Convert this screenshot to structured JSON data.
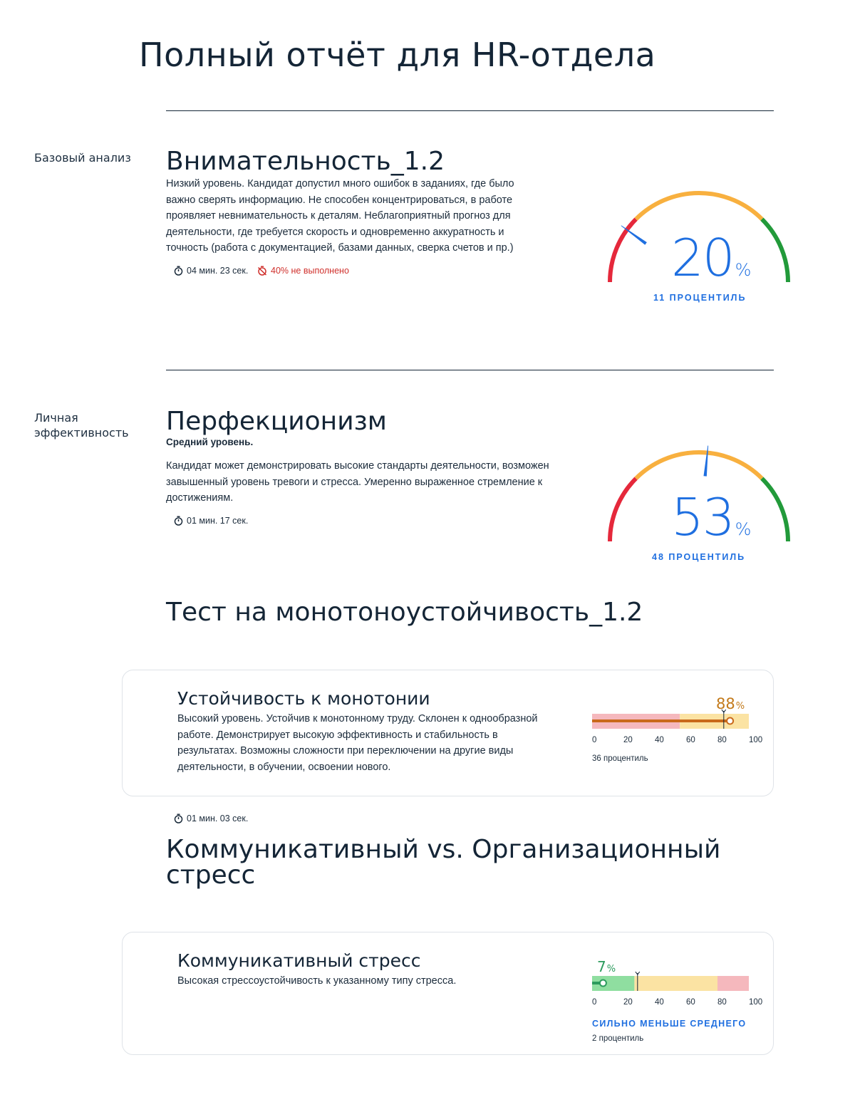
{
  "page": {
    "title": "Полный отчёт для HR-отдела"
  },
  "attention": {
    "side_label": "Базовый анализ",
    "title": "Внимательность_1.2",
    "description": "Низкий уровень. Кандидат допустил много ошибок в заданиях, где было важно сверять информацию. Не способен концентрироваться, в работе проявляет невнимательность к деталям. Неблагоприятный прогноз для деятельности, где требуется скорость и одновременно аккуратность и точность (работа с документацией, базами данных, сверка счетов и пр.)",
    "time": "04 мин. 23 сек.",
    "not_done": "40% не выполнено",
    "percent": "20",
    "percent_sign": "%",
    "percentile": "11 ПРОЦЕНТИЛЬ",
    "gauge_value": 20,
    "timer_icon": "timer-icon",
    "timer_off_icon": "timer-off-icon"
  },
  "perfectionism": {
    "side_label": "Личная эффективность",
    "title": "Перфекционизм",
    "level": "Средний уровень.",
    "description": "Кандидат может демонстрировать высокие стандарты деятельности, возможен завышенный уровень тревоги и стресса. Умеренно выраженное стремление к достижениям.",
    "time": "01 мин. 17 сек.",
    "percent": "53",
    "percent_sign": "%",
    "percentile": "48 ПРОЦЕНТИЛЬ",
    "gauge_value": 53
  },
  "monotony_test": {
    "title": "Тест на монотоноустойчивость_1.2",
    "card": {
      "title": "Устойчивость к монотонии",
      "description": "Высокий уровень. Устойчив к монотонному труду. Склонен к однообразной работе. Демонстрирует высокую эффективность и стабильность в результатах. Возможны сложности при переключении на другие виды деятельности, в обучении, освоении нового.",
      "value": 88,
      "value_label": "88",
      "percent_sign": "%",
      "axis": [
        "0",
        "20",
        "40",
        "60",
        "80",
        "100"
      ],
      "percentile": "36 процентиль"
    },
    "time": "01 мин. 03 сек."
  },
  "stress_test": {
    "title": "Коммуникативный vs. Организационный стресс",
    "card": {
      "title": "Коммуникативный стресс",
      "description": "Высокая стрессоустойчивость к указанному типу стресса.",
      "value": 7,
      "value_label": "7",
      "percent_sign": "%",
      "axis": [
        "0",
        "20",
        "40",
        "60",
        "80",
        "100"
      ],
      "verdict": "СИЛЬНО МЕНЬШЕ СРЕДНЕГО",
      "percentile": "2 процентиль"
    }
  },
  "colors": {
    "red": "#e5283b",
    "orange": "#f8b03f",
    "green": "#229a3a",
    "blue": "#1f6fe0",
    "navy": "#142536",
    "bar_pink": "#f5b8bd",
    "bar_yellow": "#fbe3a3",
    "bar_green": "#8fdea0",
    "bar_orange_line": "#c9691a",
    "bar_green_line": "#2c9b5d"
  }
}
